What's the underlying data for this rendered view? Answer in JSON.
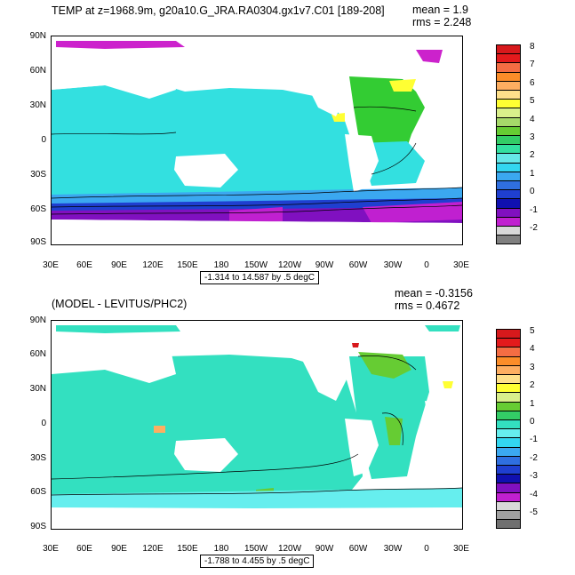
{
  "panels": [
    {
      "id": "top",
      "title": "TEMP at z=1968.9m, g20a10.G_JRA.RA0304.gx1v7.C01 [189-208]",
      "mean_text": "mean = 1.9",
      "rms_text": "rms = 2.248",
      "range_text": "-1.314 to 14.587 by .5 degC",
      "lat_labels": [
        "90N",
        "60N",
        "30N",
        "0",
        "30S",
        "60S",
        "90S"
      ],
      "lon_labels": [
        "30E",
        "60E",
        "90E",
        "120E",
        "150E",
        "180",
        "150W",
        "120W",
        "90W",
        "60W",
        "30W",
        "0",
        "30E"
      ],
      "colorbar_labels": [
        "8",
        "7",
        "6",
        "5",
        "4",
        "3",
        "2",
        "1",
        "0",
        "-1",
        "-2"
      ],
      "colorbar_colors": [
        "#d7191c",
        "#e31a1c",
        "#f46d43",
        "#fb8d29",
        "#fdae61",
        "#fee08b",
        "#ffff33",
        "#d9ef8b",
        "#a6d96a",
        "#66cc33",
        "#33cc66",
        "#33e0a0",
        "#66e8e8",
        "#33d6f0",
        "#3ba8f0",
        "#2f6fe0",
        "#1f3fd0",
        "#1010b0",
        "#8010c0",
        "#c020d0",
        "#d8d8d8",
        "#808080"
      ]
    },
    {
      "id": "bottom",
      "title": "(MODEL - LEVITUS/PHC2)",
      "mean_text": "mean = -0.3156",
      "rms_text": "rms = 0.4672",
      "range_text": "-1.788 to 4.455 by .5 degC",
      "lat_labels": [
        "90N",
        "60N",
        "30N",
        "0",
        "30S",
        "60S",
        "90S"
      ],
      "lon_labels": [
        "30E",
        "60E",
        "90E",
        "120E",
        "150E",
        "180",
        "150W",
        "120W",
        "90W",
        "60W",
        "30W",
        "0",
        "30E"
      ],
      "colorbar_labels": [
        "5",
        "4",
        "3",
        "2",
        "1",
        "0",
        "-1",
        "-2",
        "-3",
        "-4",
        "-5"
      ],
      "colorbar_colors": [
        "#d7191c",
        "#e31a1c",
        "#f46d43",
        "#fb8d29",
        "#fdae61",
        "#fee08b",
        "#ffff33",
        "#d9ef8b",
        "#66cc33",
        "#33cc66",
        "#33e0c0",
        "#66eeee",
        "#33d6f0",
        "#3ba8f0",
        "#2f6fe0",
        "#1f3fd0",
        "#1010b0",
        "#8010c0",
        "#c020d0",
        "#d8d8d8",
        "#a0a0a0",
        "#707070"
      ]
    }
  ]
}
